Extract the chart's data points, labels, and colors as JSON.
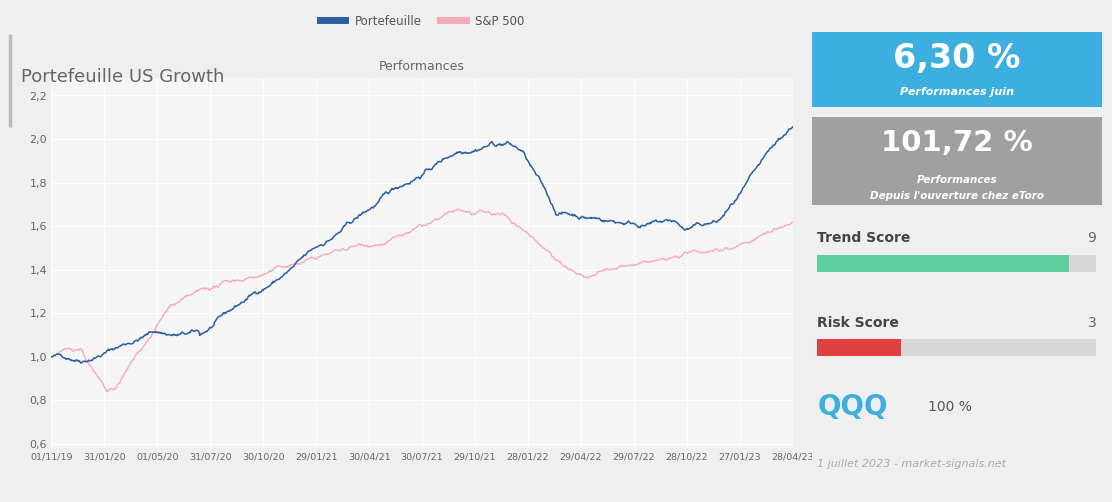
{
  "title": "Portefeuille US Growth",
  "chart_title": "Performances",
  "legend_items": [
    "Portefeuille",
    "S&P 500"
  ],
  "line_colors": [
    "#2e5fa3",
    "#f5aab8"
  ],
  "background_color": "#efefef",
  "chart_bg": "#f5f5f5",
  "yticks": [
    0.6,
    0.8,
    1.0,
    1.2,
    1.4,
    1.6,
    1.8,
    2.0,
    2.2
  ],
  "ylim": [
    0.58,
    2.28
  ],
  "xtick_labels": [
    "01/11/19",
    "31/01/20",
    "01/05/20",
    "31/07/20",
    "30/10/20",
    "29/01/21",
    "30/04/21",
    "30/07/21",
    "29/10/21",
    "28/01/22",
    "29/04/22",
    "29/07/22",
    "28/10/22",
    "27/01/23",
    "28/04/23"
  ],
  "perf_juin_value": "6,30 %",
  "perf_juin_label": "Performances juin",
  "perf_juin_bg": "#3daee0",
  "perf_etoro_value": "101,72 %",
  "perf_etoro_label1": "Performances",
  "perf_etoro_label2": "Depuis l'ouverture chez eToro",
  "perf_etoro_bg": "#a0a0a0",
  "trend_score_label": "Trend Score",
  "trend_score_value": 9,
  "trend_score_max": 10,
  "trend_bar_color": "#5ecfa0",
  "trend_bar_bg": "#d8d8d8",
  "risk_score_label": "Risk Score",
  "risk_score_value": 3,
  "risk_score_max": 10,
  "risk_bar_color": "#e04040",
  "risk_bar_bg": "#d8d8d8",
  "qqq_label": "QQQ",
  "qqq_pct": "100 %",
  "qqq_color": "#3daee0",
  "footer": "1 juillet 2023 - market-signals.net",
  "title_accent_color": "#999999"
}
